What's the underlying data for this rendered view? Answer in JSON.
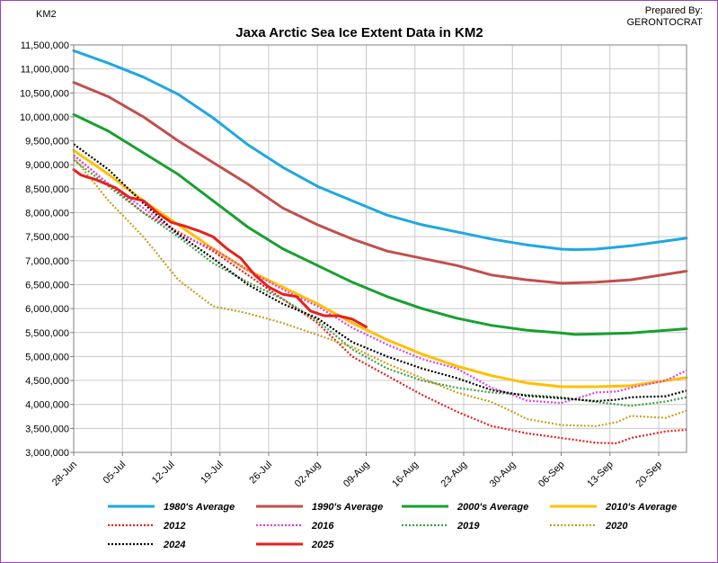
{
  "chart_data": {
    "type": "line",
    "title": "Jaxa Arctic Sea Ice Extent Data in KM2",
    "ylabel": "KM2",
    "credit": [
      "Prepared By:",
      "GERONTOCRAT"
    ],
    "ylim": [
      3000000,
      11500000
    ],
    "yticks": [
      3000000,
      3500000,
      4000000,
      4500000,
      5000000,
      5500000,
      6000000,
      6500000,
      7000000,
      7500000,
      8000000,
      8500000,
      9000000,
      9500000,
      10000000,
      10500000,
      11000000,
      11500000
    ],
    "yticklabels": [
      "3,000,000",
      "3,500,000",
      "4,000,000",
      "4,500,000",
      "5,000,000",
      "5,500,000",
      "6,000,000",
      "6,500,000",
      "7,000,000",
      "7,500,000",
      "8,000,000",
      "8,500,000",
      "9,000,000",
      "9,500,000",
      "10,000,000",
      "10,500,000",
      "11,000,000",
      "11,500,000"
    ],
    "xlim": [
      0,
      88
    ],
    "xticks": [
      0,
      7,
      14,
      21,
      28,
      35,
      42,
      49,
      56,
      63,
      70,
      77,
      84
    ],
    "xticklabels": [
      "28-Jun",
      "05-Jul",
      "12-Jul",
      "19-Jul",
      "26-Jul",
      "02-Aug",
      "09-Aug",
      "16-Aug",
      "23-Aug",
      "30-Aug",
      "06-Sep",
      "13-Sep",
      "20-Sep"
    ],
    "grid": true,
    "legend_position": "bottom",
    "series": [
      {
        "name": "1980's Average",
        "color": "#1ea8e0",
        "style": "solid",
        "x": [
          0,
          5,
          10,
          15,
          20,
          25,
          30,
          35,
          40,
          45,
          50,
          55,
          60,
          65,
          70,
          72,
          75,
          80,
          88
        ],
        "values": [
          11380000,
          11120000,
          10830000,
          10470000,
          9980000,
          9420000,
          8950000,
          8550000,
          8250000,
          7950000,
          7750000,
          7600000,
          7450000,
          7330000,
          7240000,
          7230000,
          7240000,
          7310000,
          7470000
        ]
      },
      {
        "name": "1990's Average",
        "color": "#c0504d",
        "style": "solid",
        "x": [
          0,
          5,
          10,
          15,
          20,
          25,
          30,
          35,
          40,
          45,
          50,
          55,
          60,
          65,
          70,
          75,
          80,
          88
        ],
        "values": [
          10720000,
          10420000,
          10000000,
          9500000,
          9050000,
          8600000,
          8100000,
          7750000,
          7450000,
          7200000,
          7050000,
          6900000,
          6700000,
          6600000,
          6530000,
          6550000,
          6600000,
          6780000
        ]
      },
      {
        "name": "2000's Average",
        "color": "#18a030",
        "style": "solid",
        "x": [
          0,
          5,
          10,
          15,
          20,
          25,
          30,
          35,
          40,
          45,
          50,
          55,
          60,
          65,
          70,
          72,
          75,
          80,
          88
        ],
        "values": [
          10050000,
          9700000,
          9250000,
          8800000,
          8250000,
          7700000,
          7250000,
          6900000,
          6550000,
          6250000,
          6000000,
          5800000,
          5650000,
          5550000,
          5490000,
          5460000,
          5470000,
          5490000,
          5580000
        ]
      },
      {
        "name": "2010's Average",
        "color": "#ffc000",
        "style": "solid",
        "x": [
          0,
          5,
          10,
          15,
          20,
          25,
          30,
          35,
          40,
          45,
          50,
          55,
          60,
          65,
          70,
          75,
          80,
          88
        ],
        "values": [
          9300000,
          8800000,
          8250000,
          7750000,
          7250000,
          6800000,
          6450000,
          6100000,
          5700000,
          5350000,
          5050000,
          4800000,
          4600000,
          4450000,
          4370000,
          4370000,
          4390000,
          4560000
        ]
      },
      {
        "name": "2012",
        "color": "#e62020",
        "style": "dotted",
        "x": [
          0,
          5,
          10,
          15,
          20,
          25,
          30,
          35,
          40,
          45,
          50,
          55,
          60,
          65,
          70,
          75,
          78,
          80,
          85,
          88
        ],
        "values": [
          9200000,
          8600000,
          8000000,
          7600000,
          7200000,
          6700000,
          6200000,
          5700000,
          5000000,
          4600000,
          4200000,
          3850000,
          3550000,
          3400000,
          3300000,
          3200000,
          3190000,
          3300000,
          3440000,
          3470000
        ]
      },
      {
        "name": "2016",
        "color": "#e040e0",
        "style": "dotted",
        "x": [
          0,
          5,
          10,
          15,
          20,
          25,
          30,
          35,
          40,
          45,
          50,
          55,
          60,
          63,
          65,
          70,
          75,
          78,
          80,
          85,
          88
        ],
        "values": [
          9200000,
          8600000,
          8100000,
          7550000,
          7250000,
          6800000,
          6400000,
          6050000,
          5600000,
          5250000,
          4950000,
          4750000,
          4350000,
          4200000,
          4080000,
          4030000,
          4250000,
          4270000,
          4350000,
          4500000,
          4710000
        ]
      },
      {
        "name": "2019",
        "color": "#40a040",
        "style": "dotted",
        "x": [
          0,
          5,
          10,
          15,
          20,
          25,
          30,
          35,
          40,
          45,
          50,
          55,
          60,
          65,
          70,
          75,
          80,
          85,
          88
        ],
        "values": [
          9100000,
          8550000,
          8000000,
          7500000,
          6950000,
          6550000,
          6200000,
          5750000,
          5150000,
          4750000,
          4500000,
          4350000,
          4250000,
          4200000,
          4150000,
          4050000,
          3970000,
          4060000,
          4150000
        ]
      },
      {
        "name": "2020",
        "color": "#c8a020",
        "style": "dotted",
        "x": [
          0,
          5,
          10,
          15,
          20,
          25,
          30,
          35,
          40,
          45,
          50,
          55,
          60,
          63,
          65,
          70,
          75,
          78,
          80,
          85,
          88
        ],
        "values": [
          9150000,
          8250000,
          7500000,
          6600000,
          6050000,
          5900000,
          5700000,
          5450000,
          5200000,
          4850000,
          4550000,
          4250000,
          4050000,
          3850000,
          3700000,
          3570000,
          3550000,
          3630000,
          3760000,
          3720000,
          3870000
        ]
      },
      {
        "name": "2024",
        "color": "#000000",
        "style": "dotted",
        "x": [
          0,
          5,
          10,
          15,
          20,
          25,
          30,
          35,
          40,
          45,
          50,
          55,
          60,
          65,
          70,
          75,
          78,
          80,
          85,
          88
        ],
        "values": [
          9430000,
          8900000,
          8200000,
          7550000,
          7050000,
          6500000,
          6100000,
          5800000,
          5300000,
          5000000,
          4750000,
          4550000,
          4300000,
          4180000,
          4130000,
          4070000,
          4100000,
          4150000,
          4170000,
          4290000
        ]
      },
      {
        "name": "2025",
        "color": "#e62020",
        "style": "solid",
        "x": [
          0,
          1,
          2,
          3,
          5,
          6,
          8,
          10,
          12,
          14,
          16,
          18,
          20,
          22,
          24,
          26,
          28,
          30,
          32,
          34,
          36,
          38,
          40,
          42
        ],
        "values": [
          8900000,
          8790000,
          8740000,
          8700000,
          8580000,
          8520000,
          8320000,
          8250000,
          8000000,
          7800000,
          7720000,
          7620000,
          7500000,
          7250000,
          7050000,
          6700000,
          6450000,
          6300000,
          6250000,
          5950000,
          5850000,
          5850000,
          5780000,
          5620000
        ]
      }
    ]
  }
}
